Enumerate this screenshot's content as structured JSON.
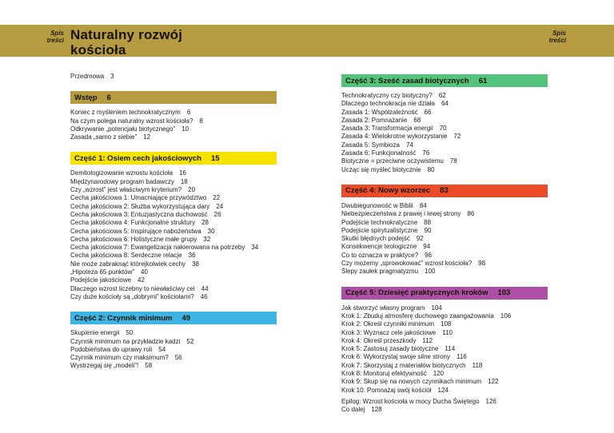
{
  "header": {
    "corner_line1": "Spis",
    "corner_line2": "treści",
    "title": "Naturalny rozwój kościoła",
    "band_color": "#b69b41"
  },
  "columns": [
    {
      "blocks": [
        {
          "label": "Przedmowa",
          "page": "3"
        },
        {
          "heading": "Wstęp",
          "page": "6",
          "color": "#b69b41",
          "entries": [
            {
              "label": "Koniec z myśleniem technokratycznym",
              "page": "6"
            },
            {
              "label": "Na czym polega naturalny wzrost kościoła?",
              "page": "8"
            },
            {
              "label": "Odkrywanie „potencjału biotycznego”",
              "page": "10"
            },
            {
              "label": "Zasada „samo z siebie”",
              "page": "12"
            }
          ]
        },
        {
          "heading": "Część 1: Osiem cech jakościowych",
          "page": "15",
          "color": "#f6e300",
          "entries": [
            {
              "label": "Demitologizowanie wzrostu kościoła",
              "page": "16"
            },
            {
              "label": "Międzynarodowy program badawczy",
              "page": "18"
            },
            {
              "label": "Czy „wzrost” jest właściwym kryterium?",
              "page": "20"
            },
            {
              "label": "Cecha jakościowa 1: Umacniające przywództwo",
              "page": "22"
            },
            {
              "label": "Cecha jakościowa 2: Służba wykorzystująca dary",
              "page": "24"
            },
            {
              "label": "Cecha jakościowa 3: Entuzjastyczna duchowość",
              "page": "26"
            },
            {
              "label": "Cecha jakościowa 4: Funkcjonalne struktury",
              "page": "28"
            },
            {
              "label": "Cecha jakościowa 5: Inspirujące nabożeństwa",
              "page": "30"
            },
            {
              "label": "Cecha jakościowa 6: Holistyczne małe grupy",
              "page": "32"
            },
            {
              "label": "Cecha jakościowa 7: Ewangelizacja nakierowana na potrzeby",
              "page": "34"
            },
            {
              "label": "Cecha jakościowa 8: Serdeczne relacje",
              "page": "36"
            },
            {
              "label": "Nie może zabraknąć którejkolwiek cechy",
              "page": "38"
            },
            {
              "label": "„Hipoteza 65 punktów”",
              "page": "40"
            },
            {
              "label": "Podejście jakościowe",
              "page": "42"
            },
            {
              "label": "Dlaczego wzrost liczebny to niewłaściwy cel",
              "page": "44"
            },
            {
              "label": "Czy duże kościoły są „dobrymi” kościołami?",
              "page": "46"
            }
          ]
        },
        {
          "heading": "Część 2: Czynnik minimum",
          "page": "49",
          "color": "#3eb4e4",
          "entries": [
            {
              "label": "Skupienie energii",
              "page": "50"
            },
            {
              "label": "Czynnik minimum na przykładzie kadzi",
              "page": "52"
            },
            {
              "label": "Podobieństwa do uprawy roli",
              "page": "54"
            },
            {
              "label": "Czynnik minimum czy maksimum?",
              "page": "56"
            },
            {
              "label": "Wystrzegaj się „modeli”!",
              "page": "58"
            }
          ]
        }
      ]
    },
    {
      "blocks": [
        {
          "heading": "Część 3: Sześć zasad biotycznych",
          "page": "61",
          "color": "#53c37b",
          "entries": [
            {
              "label": "Technokratyczny czy biotyczny?",
              "page": "62"
            },
            {
              "label": "Dlaczego technokracja nie działa",
              "page": "64"
            },
            {
              "label": "Zasada 1: Współzależność",
              "page": "66"
            },
            {
              "label": "Zasada 2: Pomnażanie",
              "page": "68"
            },
            {
              "label": "Zasada 3: Transformacja energii",
              "page": "70"
            },
            {
              "label": "Zasada 4: Wielokrotne wykorzystanie",
              "page": "72"
            },
            {
              "label": "Zasada 5: Symbioza",
              "page": "74"
            },
            {
              "label": "Zasada 6: Funkcjonalność",
              "page": "76"
            },
            {
              "label": "Biotyczne = przeciwne oczywistemu",
              "page": "78"
            },
            {
              "label": "Ucząc się myśleć biotycznie",
              "page": "80"
            }
          ]
        },
        {
          "heading": "Część 4: Nowy wzorzec",
          "page": "83",
          "color": "#eb4b26",
          "entries": [
            {
              "label": "Dwubiegunowość w Biblii",
              "page": "84"
            },
            {
              "label": "Niebezpieczeństwa z prawej i lewej strony",
              "page": "86"
            },
            {
              "label": "Podejście technokratyczne",
              "page": "88"
            },
            {
              "label": "Podejście spirytualistyczne",
              "page": "90"
            },
            {
              "label": "Skutki błędnych podejść",
              "page": "92"
            },
            {
              "label": "Konsekwencje teologiczne",
              "page": "94"
            },
            {
              "label": "Co to oznacza w praktyce?",
              "page": "96"
            },
            {
              "label": "Czy możemy „sprowokować” wzrost kościoła?",
              "page": "98"
            },
            {
              "label": "Ślepy zaułek pragmatyzmu",
              "page": "100"
            }
          ]
        },
        {
          "heading": "Część 5: Dziesięć praktycznych kroków",
          "page": "103",
          "color": "#ac4fa5",
          "entries": [
            {
              "label": "Jak stworzyć własny program",
              "page": "104"
            },
            {
              "label": "Krok 1: Zbuduj atmosferę duchowego zaangażowania",
              "page": "106"
            },
            {
              "label": "Krok 2: Określ czynniki minimum",
              "page": "108"
            },
            {
              "label": "Krok 3: Wyznacz cele jakościowe",
              "page": "110"
            },
            {
              "label": "Krok 4: Określ przeszkody",
              "page": "112"
            },
            {
              "label": "Krok 5: Zastosuj zasady biotyczne",
              "page": "114"
            },
            {
              "label": "Krok 6: Wykorzystaj swoje silne strony",
              "page": "116"
            },
            {
              "label": "Krok 7: Skorzystaj z materiałów biotycznych",
              "page": "118"
            },
            {
              "label": "Krok 8: Monitoruj efektywność",
              "page": "120"
            },
            {
              "label": "Krok 9: Skup się na nowych czynnikach minimum",
              "page": "122"
            },
            {
              "label": "Krok 10: Pomnażaj swój kościół",
              "page": "124"
            },
            {
              "label": "Epilog: Wzrost kościoła w mocy Ducha Świętego",
              "page": "126",
              "gap": true
            },
            {
              "label": "Co dalej",
              "page": "128"
            }
          ]
        }
      ]
    }
  ]
}
